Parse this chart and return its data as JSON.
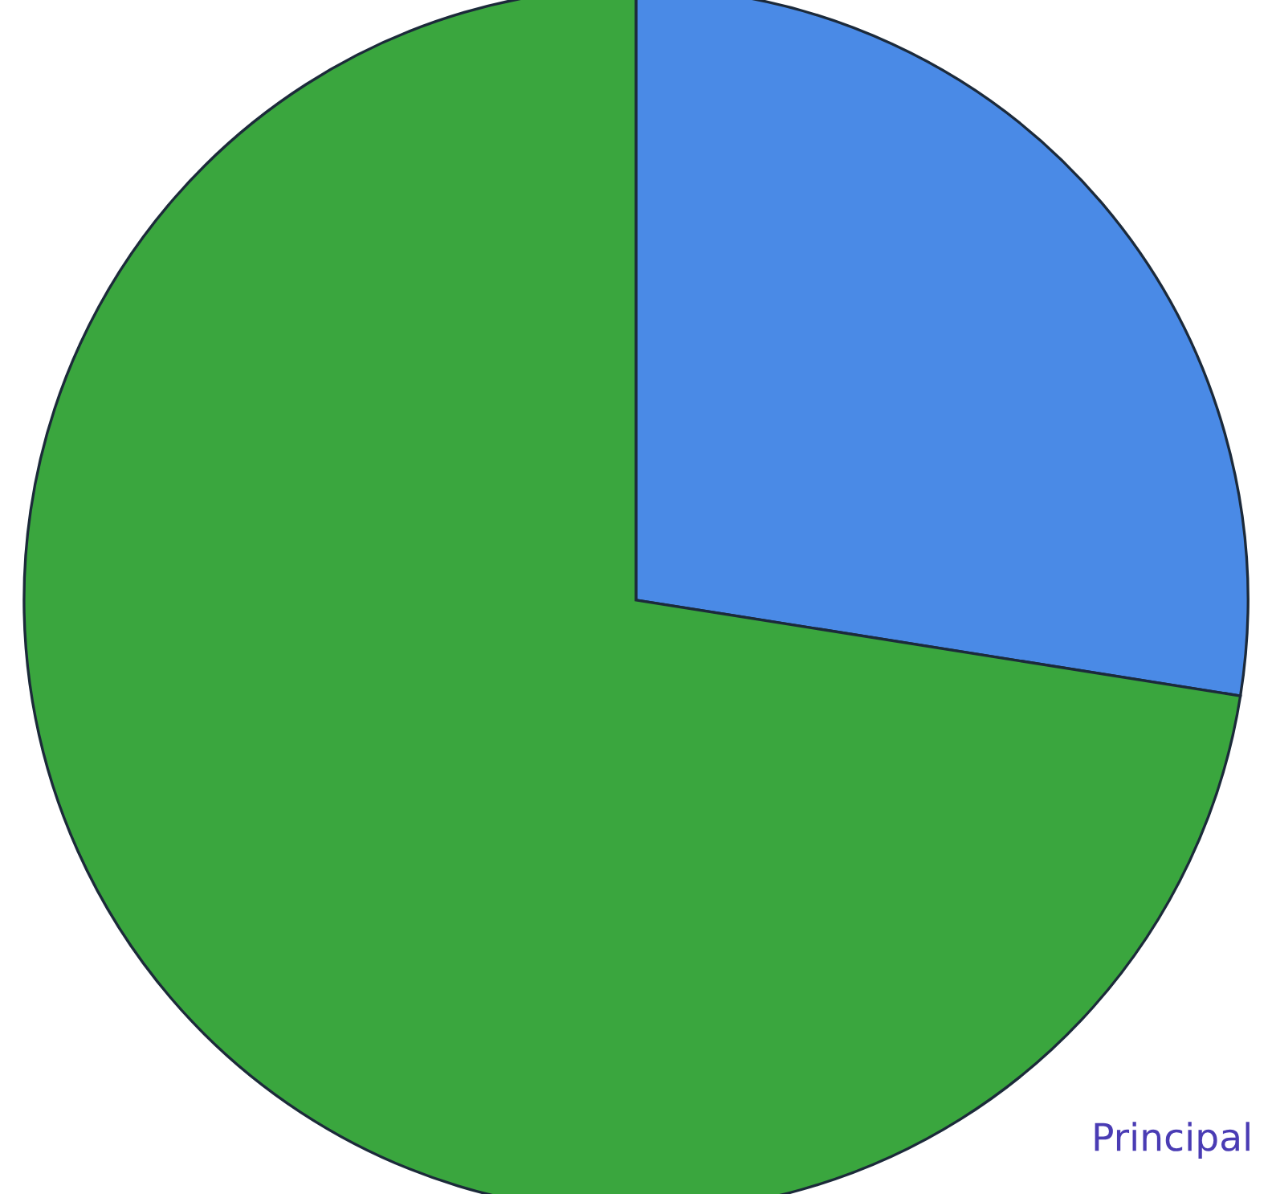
{
  "chart_data": {
    "type": "pie",
    "categories": [
      null,
      null
    ],
    "values": [
      27.5,
      72.5
    ],
    "colors": [
      "#4a8ae6",
      "#3aa63e"
    ],
    "annotations": [
      "Principal"
    ]
  }
}
